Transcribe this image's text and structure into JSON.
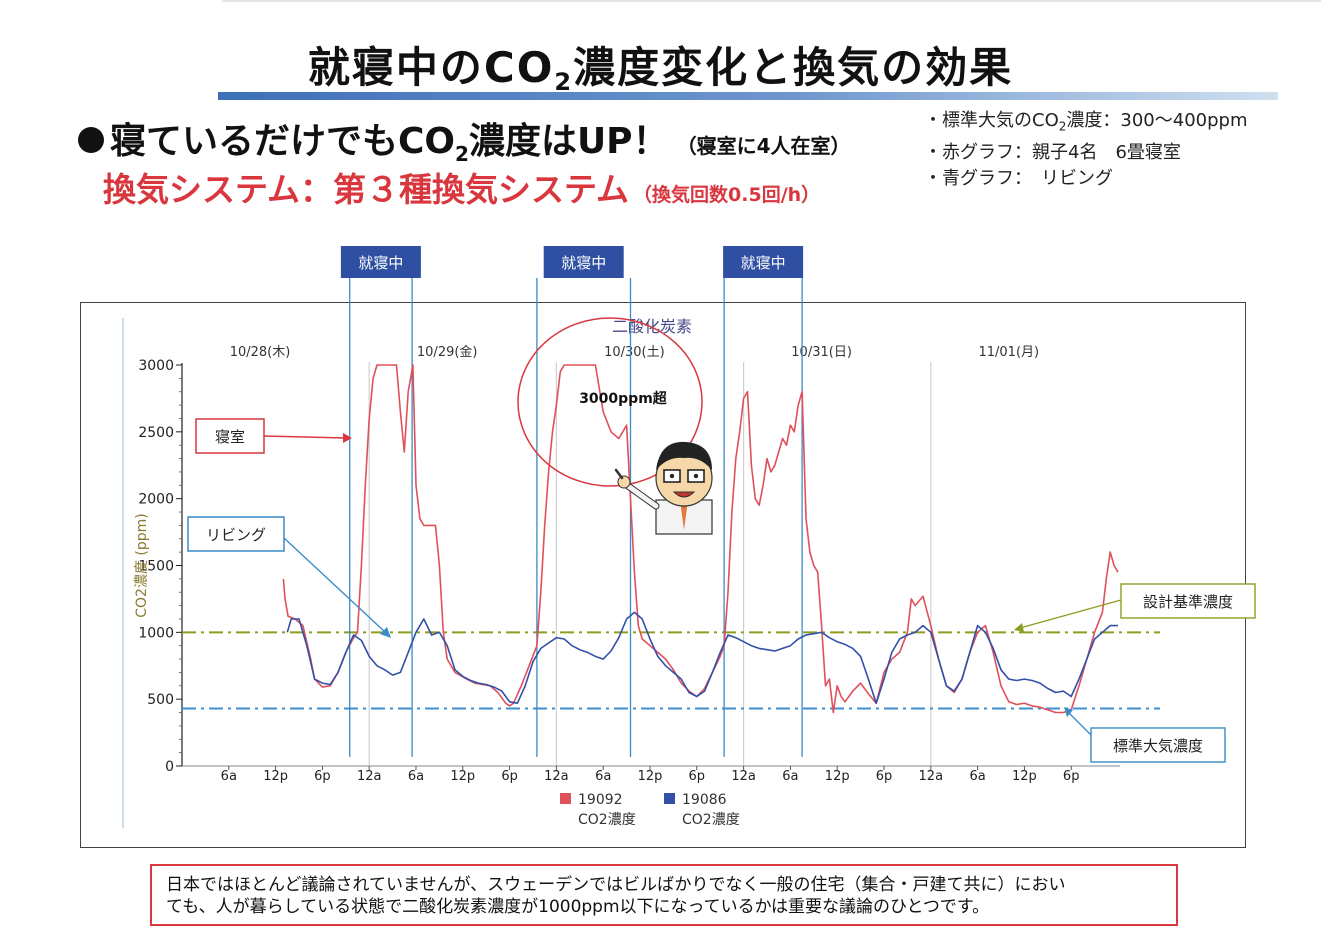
{
  "page": {
    "title_main": "就寝中のCO",
    "title_sub": "2",
    "title_rest": "濃度変化と換気の効果",
    "headline_main": "寝ているだけでもCO",
    "headline_sub": "2",
    "headline_rest": "濃度はUP！",
    "headline_note": "（寝室に4人在室）",
    "subhead": "換気システム：第３種換気システム",
    "subhead_note": "（換気回数0.5回/h）",
    "notes": [
      {
        "pre": "・標準大気のCO",
        "sub": "2",
        "post": "濃度：300～400ppm"
      },
      {
        "pre": "・赤グラフ：親子4名　6畳寝室",
        "sub": "",
        "post": ""
      },
      {
        "pre": "・青グラフ：　リビング",
        "sub": "",
        "post": ""
      }
    ],
    "footer_line1": "日本ではほとんど議論されていませんが、スウェーデンではビルばかりでなく一般の住宅（集合・戸建て共に）におい",
    "footer_line2": "ても、人が暮らしている状態で二酸化炭素濃度が1000ppm以下になっているかは重要な議論のひとつです。"
  },
  "chart_data": {
    "type": "line",
    "title": "二酸化炭素",
    "ylabel": "CO2濃度 (ppm)",
    "ylim": [
      0,
      3000
    ],
    "y_ticks": [
      0,
      500,
      1000,
      1500,
      2000,
      2500,
      3000
    ],
    "x_unit": "hours from 10/28 00:00",
    "xlim": [
      0,
      128
    ],
    "x_ticks": [
      {
        "x": 6,
        "label": "6a"
      },
      {
        "x": 12,
        "label": "12p"
      },
      {
        "x": 18,
        "label": "6p"
      },
      {
        "x": 24,
        "label": "12a"
      },
      {
        "x": 30,
        "label": "6a"
      },
      {
        "x": 36,
        "label": "12p"
      },
      {
        "x": 42,
        "label": "6p"
      },
      {
        "x": 48,
        "label": "12a"
      },
      {
        "x": 54,
        "label": "6a"
      },
      {
        "x": 60,
        "label": "12p"
      },
      {
        "x": 66,
        "label": "6p"
      },
      {
        "x": 72,
        "label": "12a"
      },
      {
        "x": 78,
        "label": "6a"
      },
      {
        "x": 84,
        "label": "12p"
      },
      {
        "x": 90,
        "label": "6p"
      },
      {
        "x": 96,
        "label": "12a"
      },
      {
        "x": 102,
        "label": "6a"
      },
      {
        "x": 108,
        "label": "12p"
      },
      {
        "x": 114,
        "label": "6p"
      }
    ],
    "day_labels": [
      {
        "x": 10,
        "label": "10/28(木)"
      },
      {
        "x": 34,
        "label": "10/29(金)"
      },
      {
        "x": 58,
        "label": "10/30(土)"
      },
      {
        "x": 82,
        "label": "10/31(日)"
      },
      {
        "x": 106,
        "label": "11/01(月)"
      }
    ],
    "day_dividers": [
      24,
      48,
      72,
      96
    ],
    "reference_lines": [
      {
        "y": 1000,
        "label": "設計基準濃度",
        "color": "#8d9d20"
      },
      {
        "y": 430,
        "label": "標準大気濃度",
        "color": "#3e8ed0"
      }
    ],
    "sleep_periods": [
      {
        "start": 21.5,
        "end": 29.5,
        "label": "就寝中"
      },
      {
        "start": 45.5,
        "end": 57.5,
        "label": "就寝中"
      },
      {
        "start": 69.5,
        "end": 79.5,
        "label": "就寝中"
      }
    ],
    "annotations": [
      {
        "text": "3000ppm超",
        "x": 53,
        "y": 2720
      },
      {
        "text": "寝室",
        "series": "19092"
      },
      {
        "text": "リビング",
        "series": "19086"
      }
    ],
    "legend": [
      {
        "code": "19092",
        "label": "CO2濃度",
        "color": "#e0505a"
      },
      {
        "code": "19086",
        "label": "CO2濃度",
        "color": "#3350a8"
      }
    ],
    "series": [
      {
        "name": "19092",
        "label": "寝室",
        "color": "#e0505a",
        "points": [
          [
            13,
            1400
          ],
          [
            13.2,
            1250
          ],
          [
            13.6,
            1120
          ],
          [
            14.5,
            1100
          ],
          [
            15.5,
            1050
          ],
          [
            16.5,
            800
          ],
          [
            17,
            650
          ],
          [
            18,
            590
          ],
          [
            19,
            600
          ],
          [
            20,
            700
          ],
          [
            21,
            850
          ],
          [
            22,
            960
          ],
          [
            22.5,
            1000
          ],
          [
            23,
            1500
          ],
          [
            23.5,
            2100
          ],
          [
            24,
            2600
          ],
          [
            24.5,
            2900
          ],
          [
            25,
            3000
          ],
          [
            27.5,
            3000
          ],
          [
            28,
            2650
          ],
          [
            28.5,
            2350
          ],
          [
            29,
            2800
          ],
          [
            29.6,
            3000
          ],
          [
            30,
            2100
          ],
          [
            30.5,
            1850
          ],
          [
            31,
            1800
          ],
          [
            32.5,
            1800
          ],
          [
            33,
            1500
          ],
          [
            33.5,
            1000
          ],
          [
            34,
            800
          ],
          [
            35,
            700
          ],
          [
            36.5,
            650
          ],
          [
            37.5,
            620
          ],
          [
            38.5,
            610
          ],
          [
            39.5,
            600
          ],
          [
            40.5,
            550
          ],
          [
            41.5,
            470
          ],
          [
            42,
            450
          ],
          [
            42.5,
            470
          ],
          [
            43.5,
            600
          ],
          [
            44.5,
            750
          ],
          [
            45.5,
            900
          ],
          [
            46,
            1300
          ],
          [
            46.5,
            1800
          ],
          [
            47,
            2200
          ],
          [
            47.5,
            2500
          ],
          [
            48,
            2700
          ],
          [
            48.5,
            2950
          ],
          [
            49,
            3000
          ],
          [
            53,
            3000
          ],
          [
            54,
            2650
          ],
          [
            55,
            2500
          ],
          [
            56,
            2450
          ],
          [
            57,
            2550
          ],
          [
            57.5,
            2000
          ],
          [
            58,
            1450
          ],
          [
            58.5,
            1050
          ],
          [
            59,
            950
          ],
          [
            60,
            900
          ],
          [
            61,
            850
          ],
          [
            62,
            800
          ],
          [
            63,
            720
          ],
          [
            64,
            620
          ],
          [
            65,
            560
          ],
          [
            66,
            520
          ],
          [
            67,
            580
          ],
          [
            68,
            700
          ],
          [
            69,
            820
          ],
          [
            69.5,
            900
          ],
          [
            70,
            1300
          ],
          [
            70.5,
            1900
          ],
          [
            71,
            2300
          ],
          [
            71.5,
            2500
          ],
          [
            72,
            2750
          ],
          [
            72.5,
            2800
          ],
          [
            73,
            2250
          ],
          [
            73.5,
            2000
          ],
          [
            74,
            1950
          ],
          [
            74.5,
            2100
          ],
          [
            75,
            2300
          ],
          [
            75.5,
            2200
          ],
          [
            76,
            2250
          ],
          [
            76.5,
            2350
          ],
          [
            77,
            2450
          ],
          [
            77.5,
            2400
          ],
          [
            78,
            2550
          ],
          [
            78.5,
            2500
          ],
          [
            79,
            2700
          ],
          [
            79.5,
            2800
          ],
          [
            80,
            1850
          ],
          [
            80.5,
            1600
          ],
          [
            81,
            1500
          ],
          [
            81.5,
            1450
          ],
          [
            82,
            1050
          ],
          [
            82.5,
            600
          ],
          [
            83,
            650
          ],
          [
            83.5,
            400
          ],
          [
            84,
            600
          ],
          [
            84.5,
            520
          ],
          [
            85,
            480
          ],
          [
            86,
            560
          ],
          [
            87,
            620
          ],
          [
            88,
            540
          ],
          [
            89,
            470
          ],
          [
            90,
            700
          ],
          [
            91,
            800
          ],
          [
            92,
            850
          ],
          [
            93,
            1000
          ],
          [
            93.5,
            1250
          ],
          [
            94,
            1200
          ],
          [
            95,
            1270
          ],
          [
            96,
            1050
          ],
          [
            97,
            800
          ],
          [
            98,
            600
          ],
          [
            99,
            550
          ],
          [
            100,
            650
          ],
          [
            101,
            850
          ],
          [
            102,
            1000
          ],
          [
            103,
            1050
          ],
          [
            104,
            850
          ],
          [
            105,
            600
          ],
          [
            106,
            480
          ],
          [
            107,
            460
          ],
          [
            108,
            470
          ],
          [
            109,
            450
          ],
          [
            110,
            440
          ],
          [
            111,
            420
          ],
          [
            112,
            400
          ],
          [
            113,
            400
          ],
          [
            114,
            420
          ],
          [
            115,
            600
          ],
          [
            116,
            800
          ],
          [
            117,
            1000
          ],
          [
            118,
            1150
          ],
          [
            118.5,
            1400
          ],
          [
            119,
            1600
          ],
          [
            119.5,
            1500
          ],
          [
            120,
            1450
          ]
        ]
      },
      {
        "name": "19086",
        "label": "リビング",
        "color": "#3350a8",
        "points": [
          [
            13.5,
            1000
          ],
          [
            14,
            1100
          ],
          [
            15,
            1100
          ],
          [
            16,
            900
          ],
          [
            17,
            650
          ],
          [
            18,
            620
          ],
          [
            19,
            610
          ],
          [
            20,
            700
          ],
          [
            21,
            850
          ],
          [
            22,
            980
          ],
          [
            23,
            940
          ],
          [
            24,
            820
          ],
          [
            25,
            750
          ],
          [
            26,
            720
          ],
          [
            27,
            680
          ],
          [
            28,
            700
          ],
          [
            29,
            850
          ],
          [
            30,
            1000
          ],
          [
            31,
            1100
          ],
          [
            32,
            980
          ],
          [
            33,
            1000
          ],
          [
            34,
            900
          ],
          [
            35,
            720
          ],
          [
            36,
            670
          ],
          [
            37,
            640
          ],
          [
            38,
            620
          ],
          [
            39,
            610
          ],
          [
            40,
            590
          ],
          [
            41,
            560
          ],
          [
            42,
            480
          ],
          [
            43,
            470
          ],
          [
            44,
            600
          ],
          [
            45,
            780
          ],
          [
            46,
            880
          ],
          [
            47,
            920
          ],
          [
            48,
            960
          ],
          [
            49,
            950
          ],
          [
            50,
            900
          ],
          [
            51,
            870
          ],
          [
            52,
            850
          ],
          [
            53,
            820
          ],
          [
            54,
            800
          ],
          [
            55,
            860
          ],
          [
            56,
            960
          ],
          [
            57,
            1100
          ],
          [
            58,
            1150
          ],
          [
            59,
            1100
          ],
          [
            60,
            950
          ],
          [
            61,
            820
          ],
          [
            62,
            750
          ],
          [
            63,
            700
          ],
          [
            64,
            650
          ],
          [
            65,
            550
          ],
          [
            66,
            520
          ],
          [
            67,
            560
          ],
          [
            68,
            700
          ],
          [
            69,
            850
          ],
          [
            70,
            980
          ],
          [
            71,
            960
          ],
          [
            72,
            930
          ],
          [
            73,
            900
          ],
          [
            74,
            880
          ],
          [
            75,
            870
          ],
          [
            76,
            860
          ],
          [
            77,
            880
          ],
          [
            78,
            900
          ],
          [
            79,
            950
          ],
          [
            80,
            980
          ],
          [
            81,
            990
          ],
          [
            82,
            1000
          ],
          [
            83,
            960
          ],
          [
            84,
            930
          ],
          [
            85,
            910
          ],
          [
            86,
            880
          ],
          [
            87,
            820
          ],
          [
            88,
            650
          ],
          [
            89,
            470
          ],
          [
            90,
            650
          ],
          [
            91,
            850
          ],
          [
            92,
            950
          ],
          [
            93,
            980
          ],
          [
            94,
            1000
          ],
          [
            95,
            1050
          ],
          [
            96,
            1000
          ],
          [
            97,
            800
          ],
          [
            98,
            600
          ],
          [
            99,
            560
          ],
          [
            100,
            650
          ],
          [
            101,
            850
          ],
          [
            102,
            1050
          ],
          [
            103,
            1000
          ],
          [
            104,
            880
          ],
          [
            105,
            720
          ],
          [
            106,
            650
          ],
          [
            107,
            640
          ],
          [
            108,
            650
          ],
          [
            109,
            640
          ],
          [
            110,
            620
          ],
          [
            111,
            580
          ],
          [
            112,
            550
          ],
          [
            113,
            560
          ],
          [
            114,
            520
          ],
          [
            115,
            650
          ],
          [
            116,
            800
          ],
          [
            117,
            950
          ],
          [
            118,
            1000
          ],
          [
            119,
            1050
          ],
          [
            120,
            1050
          ]
        ]
      }
    ]
  }
}
